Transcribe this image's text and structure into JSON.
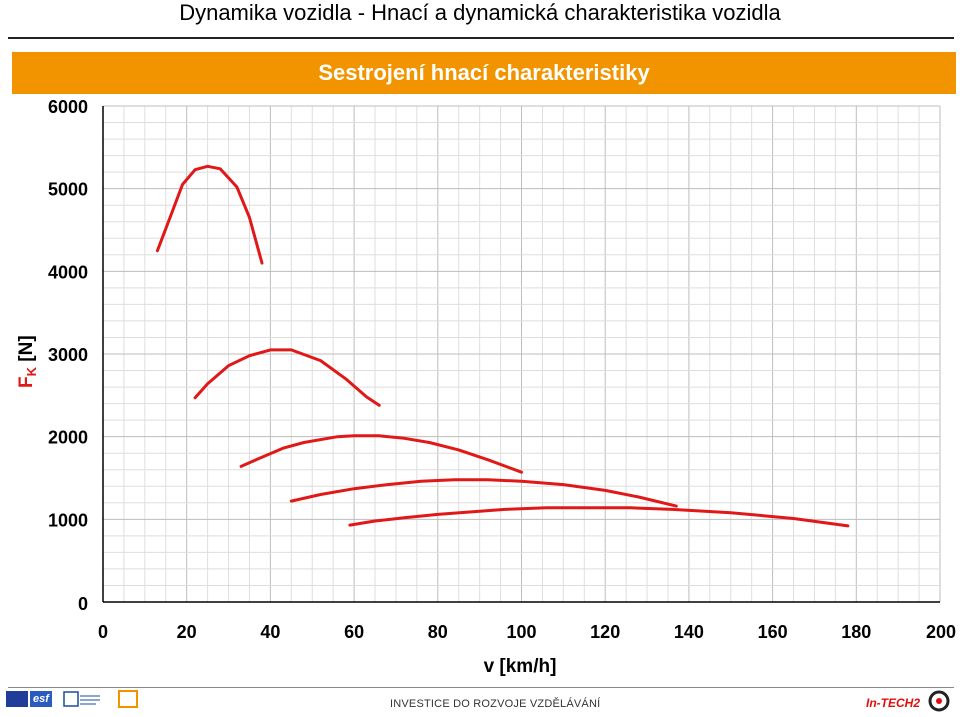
{
  "page": {
    "title": "Dynamika vozidla - Hnací a dynamická charakteristika vozidla",
    "banner": "Sestrojení hnací charakteristiky",
    "footer": "INVESTICE DO ROZVOJE VZDĚLÁVÁNÍ",
    "logos": {
      "esf": "esf",
      "intech": "In-TECH2"
    }
  },
  "chart_data": {
    "type": "line",
    "title": "",
    "xlabel": "v [km/h]",
    "ylabel": "Fk [N]",
    "ylabel_main": "F",
    "ylabel_sub": "K",
    "ylabel_unit": " [N]",
    "xlim": [
      0,
      200
    ],
    "ylim": [
      0,
      6000
    ],
    "xticks": [
      0,
      20,
      40,
      60,
      80,
      100,
      120,
      140,
      160,
      180,
      200
    ],
    "yticks": [
      0,
      1000,
      2000,
      3000,
      4000,
      5000,
      6000
    ],
    "grid": true,
    "line_color": "#e01818",
    "series": [
      {
        "x": [
          13,
          16,
          19,
          22,
          25,
          28,
          32,
          35,
          38
        ],
        "y": [
          4250,
          4650,
          5050,
          5230,
          5270,
          5240,
          5020,
          4650,
          4100
        ]
      },
      {
        "x": [
          22,
          25,
          30,
          35,
          40,
          45,
          52,
          58,
          63,
          66
        ],
        "y": [
          2470,
          2640,
          2860,
          2980,
          3050,
          3050,
          2920,
          2700,
          2480,
          2380
        ]
      },
      {
        "x": [
          33,
          37,
          43,
          48,
          56,
          60,
          66,
          72,
          78,
          85,
          92,
          100
        ],
        "y": [
          1640,
          1730,
          1860,
          1930,
          2000,
          2010,
          2010,
          1980,
          1930,
          1840,
          1720,
          1570
        ]
      },
      {
        "x": [
          45,
          52,
          60,
          68,
          76,
          84,
          92,
          100,
          110,
          120,
          128,
          137
        ],
        "y": [
          1220,
          1300,
          1370,
          1420,
          1460,
          1480,
          1480,
          1460,
          1420,
          1350,
          1270,
          1160
        ]
      },
      {
        "x": [
          59,
          65,
          72,
          80,
          88,
          96,
          106,
          116,
          126,
          136,
          150,
          165,
          178
        ],
        "y": [
          930,
          980,
          1020,
          1060,
          1090,
          1120,
          1140,
          1140,
          1140,
          1120,
          1080,
          1010,
          920
        ]
      }
    ]
  }
}
